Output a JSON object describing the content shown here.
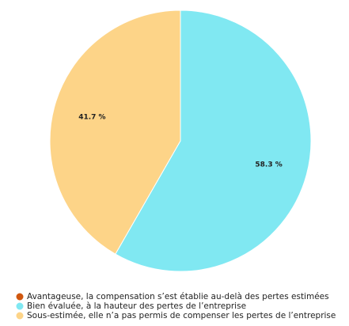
{
  "chart_data": {
    "type": "pie",
    "categories": [
      "Avantageuse, la compensation s’est établie au-delà des pertes estimées",
      "Bien évaluée, à la hauteur des pertes de l’entreprise",
      "Sous-estimée, elle n’a pas permis de compenser les pertes de l’entreprise"
    ],
    "values": [
      0,
      58.3,
      41.7
    ],
    "value_labels": [
      null,
      "58.3 %",
      "41.7 %"
    ],
    "colors": [
      "#d0570f",
      "#80e8f2",
      "#fdd488"
    ]
  }
}
